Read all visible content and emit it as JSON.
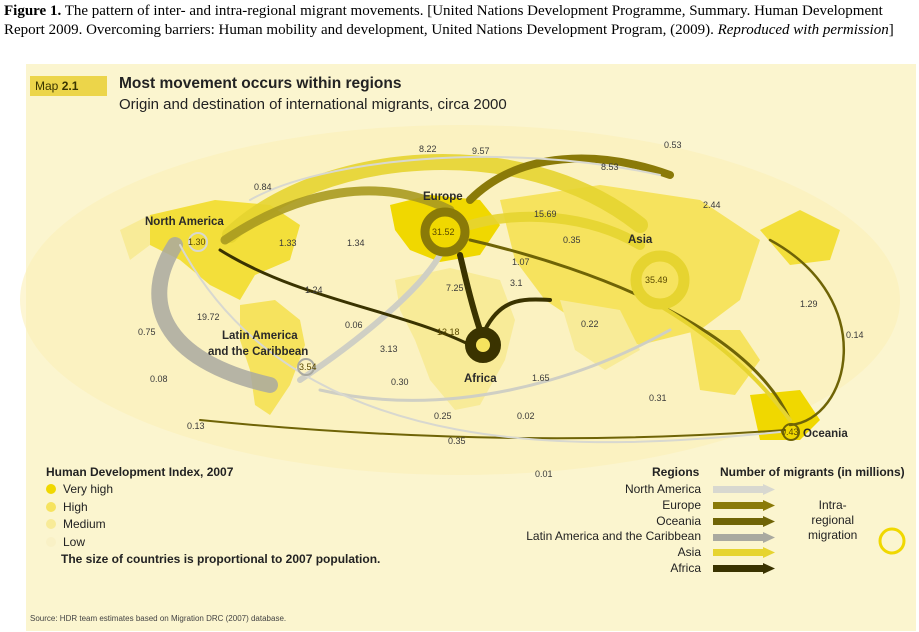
{
  "caption": {
    "label": "Figure 1.",
    "text": "The pattern of inter- and intra-regional migrant movements. [United Nations Development Programme, Summary. Human Development Report 2009. Overcoming barriers: Human mobility and development, United Nations Development Program, (2009).",
    "italic": "Reproduced with permission",
    "close": "]"
  },
  "map": {
    "badge_prefix": "Map",
    "badge_number": "2.1",
    "title": "Most movement occurs within regions",
    "subtitle": "Origin and destination of international migrants, circa 2000",
    "regions": {
      "north_america": "North America",
      "europe": "Europe",
      "asia": "Asia",
      "latin_america_1": "Latin America",
      "latin_america_2": "and the Caribbean",
      "africa": "Africa",
      "oceania": "Oceania"
    },
    "intra_values": {
      "north_america": "1.30",
      "europe": "31.52",
      "asia": "35.49",
      "latin_america": "3.54",
      "africa": "13.18",
      "oceania": "0.43"
    },
    "flow_values": [
      "8.22",
      "9.57",
      "0.53",
      "8.53",
      "0.84",
      "2.44",
      "15.69",
      "0.35",
      "1.33",
      "1.34",
      "1.07",
      "1.24",
      "7.25",
      "3.1",
      "1.29",
      "19.72",
      "0.75",
      "0.06",
      "0.22",
      "0.14",
      "3.13",
      "0.08",
      "0.30",
      "1.65",
      "0.31",
      "0.25",
      "0.02",
      "0.13",
      "0.35",
      "0.01"
    ],
    "colors": {
      "very_high": "#f0d800",
      "high": "#f6e35e",
      "medium": "#f8eb98",
      "low": "#f9f1c6",
      "north_america_flow": "#d8d8d0",
      "europe_flow": "#8a7a08",
      "oceania_flow": "#6f6406",
      "latin_flow": "#a9a9a0",
      "asia_flow": "#e6d430",
      "africa_flow": "#3a3300"
    }
  },
  "legend": {
    "hdi_title": "Human Development Index, 2007",
    "hdi_items": [
      "Very high",
      "High",
      "Medium",
      "Low"
    ],
    "hdi_note": "The size of countries is proportional to 2007 population.",
    "regions_title": "Regions",
    "migrants_title": "Number of migrants (in millions)",
    "region_items": [
      "North America",
      "Europe",
      "Oceania",
      "Latin America and the Caribbean",
      "Asia",
      "Africa"
    ],
    "intra_label_1": "Intra-",
    "intra_label_2": "regional",
    "intra_label_3": "migration"
  },
  "source": "Source:  HDR team estimates based on Migration DRC (2007) database."
}
